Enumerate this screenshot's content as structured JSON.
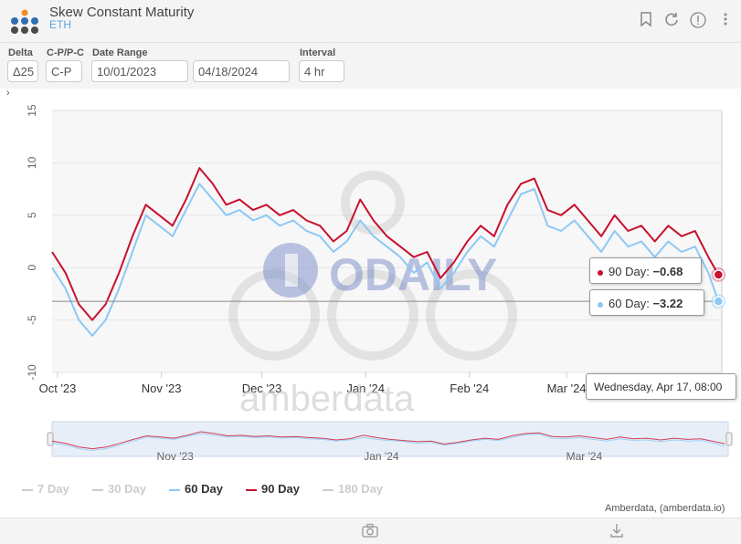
{
  "header": {
    "title": "Skew Constant Maturity",
    "subtitle": "ETH",
    "icons": [
      "bookmark-icon",
      "refresh-icon",
      "info-icon",
      "more-vertical-icon"
    ]
  },
  "controls": {
    "delta_label": "Delta",
    "delta_value": "Δ25",
    "cpp_label": "C-P/P-C",
    "cpp_value": "C-P",
    "date_range_label": "Date Range",
    "date_start": "10/01/2023",
    "date_end": "04/18/2024",
    "interval_label": "Interval",
    "interval_value": "4 hr",
    "expander": "›"
  },
  "watermark": {
    "brand": "ODAILY",
    "provider": "amberdata"
  },
  "tooltip": {
    "series_90": {
      "label": "90 Day:",
      "value": "−0.68"
    },
    "series_60": {
      "label": "60 Day:",
      "value": "−3.22"
    },
    "date": "Wednesday, Apr 17, 08:00"
  },
  "legend": [
    {
      "name": "7 Day",
      "active": false
    },
    {
      "name": "30 Day",
      "active": false
    },
    {
      "name": "60 Day",
      "active": true,
      "color": "#8cc8f6"
    },
    {
      "name": "90 Day",
      "active": true,
      "color": "#c8102e"
    },
    {
      "name": "180 Day",
      "active": false
    }
  ],
  "credit": "Amberdata, (amberdata.io)",
  "footer_icons": [
    "camera-icon",
    "download-icon"
  ],
  "chart_data": {
    "type": "line",
    "title": "Skew Constant Maturity",
    "x_tick_labels": [
      "Oct '23",
      "Nov '23",
      "Dec '23",
      "Jan '24",
      "Feb '24",
      "Mar '24"
    ],
    "navigator_tick_labels": [
      "Nov '23",
      "Jan '24",
      "Mar '24"
    ],
    "y_ticks": [
      15,
      10,
      5,
      0,
      -5,
      -10
    ],
    "ylim": [
      -10,
      15
    ],
    "xlim": [
      "2023-10-01",
      "2024-04-18"
    ],
    "grid": true,
    "crosshair_y": -3.22,
    "x": [
      "2023-10-01",
      "2023-10-05",
      "2023-10-09",
      "2023-10-13",
      "2023-10-17",
      "2023-10-21",
      "2023-10-25",
      "2023-10-29",
      "2023-11-02",
      "2023-11-06",
      "2023-11-10",
      "2023-11-14",
      "2023-11-18",
      "2023-11-22",
      "2023-11-26",
      "2023-11-30",
      "2023-12-04",
      "2023-12-08",
      "2023-12-12",
      "2023-12-16",
      "2023-12-20",
      "2023-12-24",
      "2023-12-28",
      "2024-01-01",
      "2024-01-05",
      "2024-01-09",
      "2024-01-13",
      "2024-01-17",
      "2024-01-21",
      "2024-01-25",
      "2024-01-29",
      "2024-02-02",
      "2024-02-06",
      "2024-02-10",
      "2024-02-14",
      "2024-02-18",
      "2024-02-22",
      "2024-02-26",
      "2024-03-01",
      "2024-03-05",
      "2024-03-09",
      "2024-03-13",
      "2024-03-17",
      "2024-03-21",
      "2024-03-25",
      "2024-03-29",
      "2024-04-02",
      "2024-04-06",
      "2024-04-10",
      "2024-04-14",
      "2024-04-17"
    ],
    "series": [
      {
        "name": "90 Day",
        "color": "#c8102e",
        "values": [
          1.5,
          -0.5,
          -3.5,
          -5.0,
          -3.5,
          -0.5,
          3.0,
          6.0,
          5.0,
          4.0,
          6.5,
          9.5,
          8.0,
          6.0,
          6.5,
          5.5,
          6.0,
          5.0,
          5.5,
          4.5,
          4.0,
          2.5,
          3.5,
          6.5,
          4.5,
          3.0,
          2.0,
          1.0,
          1.5,
          -1.0,
          0.5,
          2.5,
          4.0,
          3.0,
          6.0,
          8.0,
          8.5,
          5.5,
          5.0,
          6.0,
          4.5,
          3.0,
          5.0,
          3.5,
          4.0,
          2.5,
          4.0,
          3.0,
          3.5,
          1.0,
          -0.68
        ]
      },
      {
        "name": "60 Day",
        "color": "#8cc8f6",
        "values": [
          0.0,
          -2.0,
          -5.0,
          -6.5,
          -5.0,
          -2.0,
          1.5,
          5.0,
          4.0,
          3.0,
          5.5,
          8.0,
          6.5,
          5.0,
          5.5,
          4.5,
          5.0,
          4.0,
          4.5,
          3.5,
          3.0,
          1.5,
          2.5,
          4.5,
          3.0,
          2.0,
          1.0,
          -0.5,
          0.5,
          -2.0,
          -0.5,
          1.5,
          3.0,
          2.0,
          4.5,
          7.0,
          7.5,
          4.0,
          3.5,
          4.5,
          3.0,
          1.5,
          3.5,
          2.0,
          2.5,
          1.0,
          2.5,
          1.5,
          2.0,
          -0.5,
          -3.22
        ]
      }
    ]
  }
}
